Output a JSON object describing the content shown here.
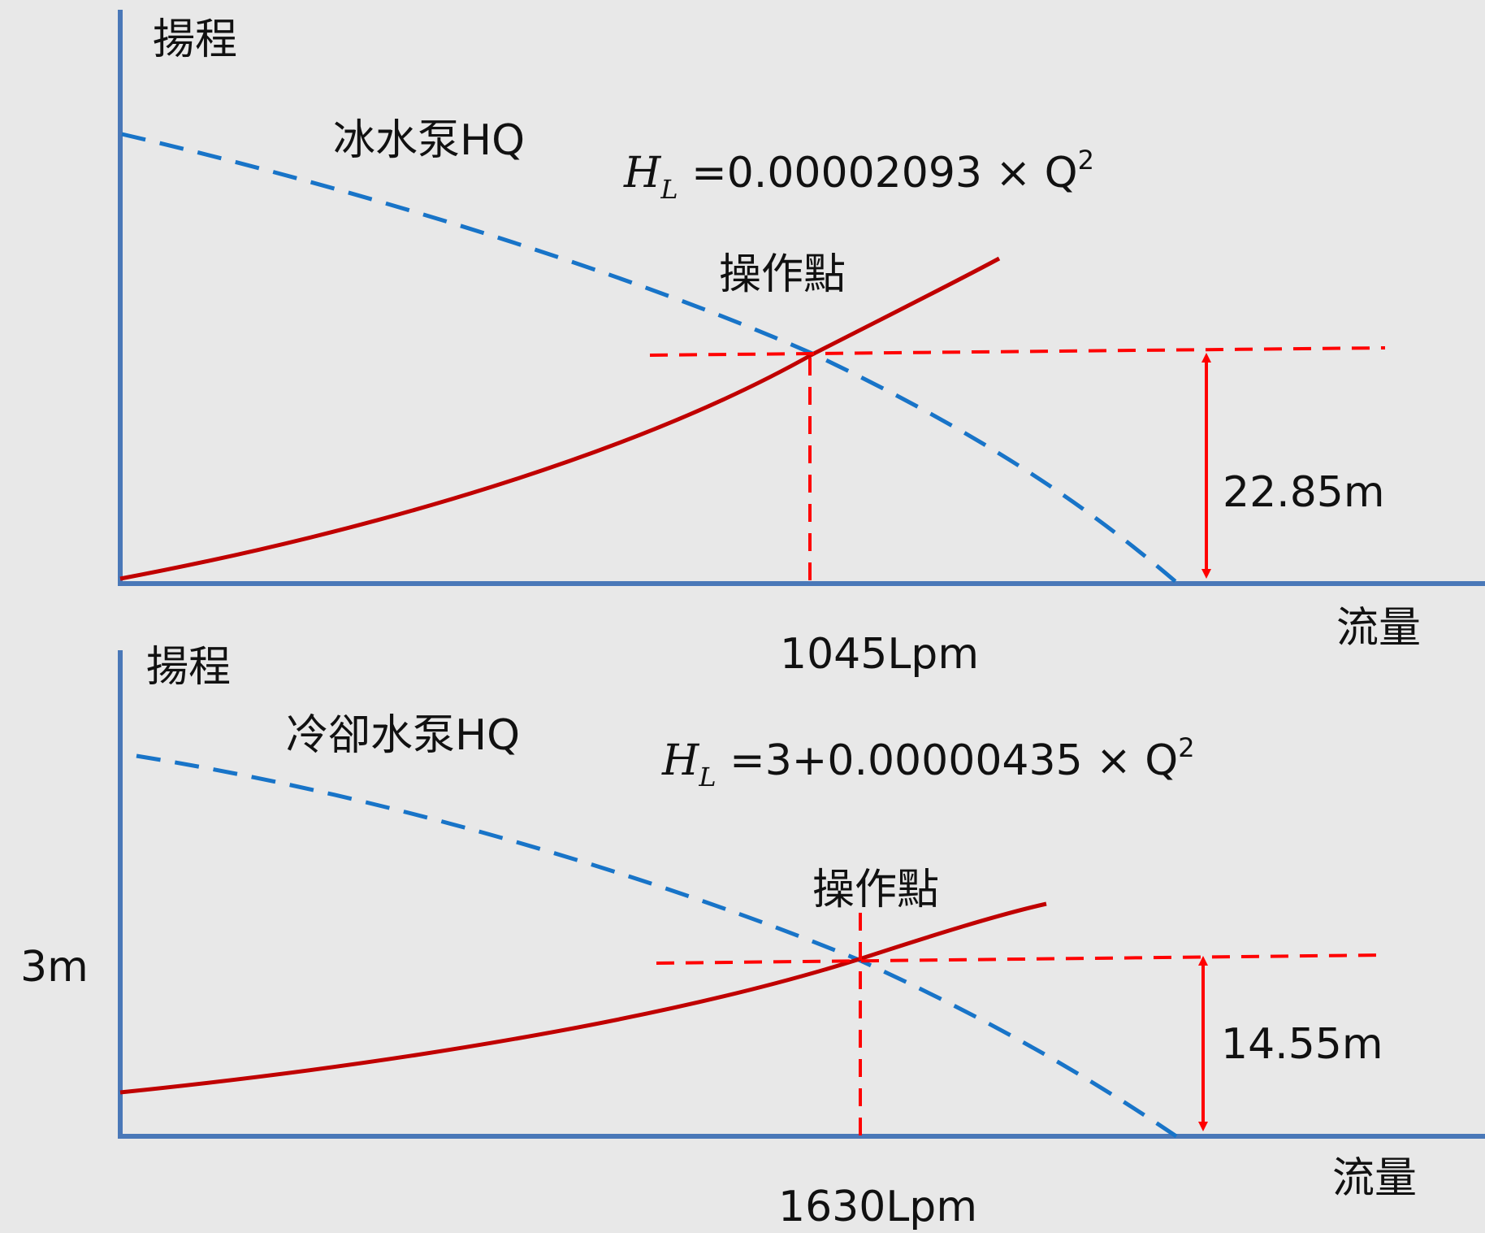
{
  "panels": [
    {
      "y_axis_label": "揚程",
      "x_axis_label": "流量",
      "pump_curve_label": "冰水泵HQ",
      "operating_point_label": "操作點",
      "equation": {
        "lhs": "H",
        "sub": "L",
        "rhs": " =0.00002093 × Q",
        "sup": "2"
      },
      "head_label": "22.85m",
      "flow_label": "1045Lpm",
      "static_head_label": ""
    },
    {
      "y_axis_label": "揚程",
      "x_axis_label": "流量",
      "pump_curve_label": "冷卻水泵HQ",
      "operating_point_label": "操作點",
      "equation": {
        "lhs": "H",
        "sub": "L",
        "rhs": " =3+0.00000435 × Q",
        "sup": "2"
      },
      "head_label": "14.55m",
      "flow_label": "1630Lpm",
      "static_head_label": "3m"
    }
  ],
  "colors": {
    "axis": "#4a78b8",
    "pump_curve": "#1874c8",
    "system_curve": "#c00000",
    "guide": "#ff0000",
    "background": "#e8e8e8"
  }
}
